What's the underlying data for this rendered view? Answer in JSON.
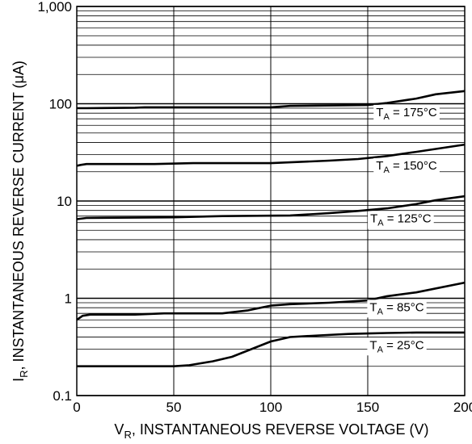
{
  "chart_data": {
    "type": "line",
    "xlabel": "V",
    "xlabel_sub": "R",
    "xlabel_rest": ", INSTANTANEOUS REVERSE VOLTAGE (V)",
    "ylabel": "I",
    "ylabel_sub": "R",
    "ylabel_rest": ", INSTANTANEOUS REVERSE CURRENT (μA)",
    "x_scale": "linear",
    "y_scale": "log",
    "xlim": [
      0,
      200
    ],
    "ylim": [
      0.1,
      1000
    ],
    "x_ticks": [
      0,
      50,
      100,
      150,
      200
    ],
    "x_tick_labels": [
      "0",
      "50",
      "100",
      "150",
      "200"
    ],
    "y_ticks": [
      0.1,
      1,
      10,
      100,
      1000
    ],
    "y_tick_labels": [
      "0.1",
      "1",
      "10",
      "100",
      "1,000"
    ],
    "grid": true,
    "series": [
      {
        "name": "T_A = 175°C",
        "label_main": "T",
        "label_sub": "A",
        "label_rest": " = 175°C",
        "label_x": 170,
        "x": [
          0,
          5,
          30,
          35,
          100,
          110,
          150,
          160,
          175,
          185,
          200
        ],
        "y": [
          90,
          90,
          91,
          92,
          92,
          95,
          97,
          102,
          113,
          125,
          135
        ]
      },
      {
        "name": "T_A = 150°C",
        "label_main": "T",
        "label_sub": "A",
        "label_rest": " = 150°C",
        "label_x": 170,
        "x": [
          0,
          2,
          5,
          40,
          60,
          100,
          130,
          145,
          160,
          175,
          200
        ],
        "y": [
          23,
          23.5,
          24,
          24,
          24.5,
          24.5,
          26,
          27,
          29,
          32,
          38
        ]
      },
      {
        "name": "T_A = 125°C",
        "label_main": "T",
        "label_sub": "A",
        "label_rest": " = 125°C",
        "label_x": 167,
        "x": [
          0,
          5,
          50,
          75,
          110,
          130,
          145,
          160,
          175,
          185,
          200
        ],
        "y": [
          6.5,
          6.7,
          6.8,
          7,
          7.1,
          7.5,
          7.9,
          8.4,
          9.3,
          10.2,
          11.2
        ]
      },
      {
        "name": "T_A = 85°C",
        "label_main": "T",
        "label_sub": "A",
        "label_rest": " = 85°C",
        "label_x": 165,
        "x": [
          0,
          3,
          7,
          30,
          45,
          75,
          88,
          100,
          110,
          130,
          150,
          160,
          175,
          200
        ],
        "y": [
          0.6,
          0.66,
          0.68,
          0.68,
          0.7,
          0.7,
          0.75,
          0.84,
          0.87,
          0.9,
          0.95,
          1.05,
          1.15,
          1.45
        ]
      },
      {
        "name": "T_A = 25°C",
        "label_main": "T",
        "label_sub": "A",
        "label_rest": " = 25°C",
        "label_x": 165,
        "x": [
          0,
          50,
          58,
          70,
          80,
          90,
          100,
          110,
          125,
          140,
          150,
          160,
          175,
          200
        ],
        "y": [
          0.2,
          0.2,
          0.205,
          0.225,
          0.25,
          0.3,
          0.36,
          0.4,
          0.415,
          0.43,
          0.435,
          0.44,
          0.445,
          0.445
        ]
      }
    ]
  }
}
